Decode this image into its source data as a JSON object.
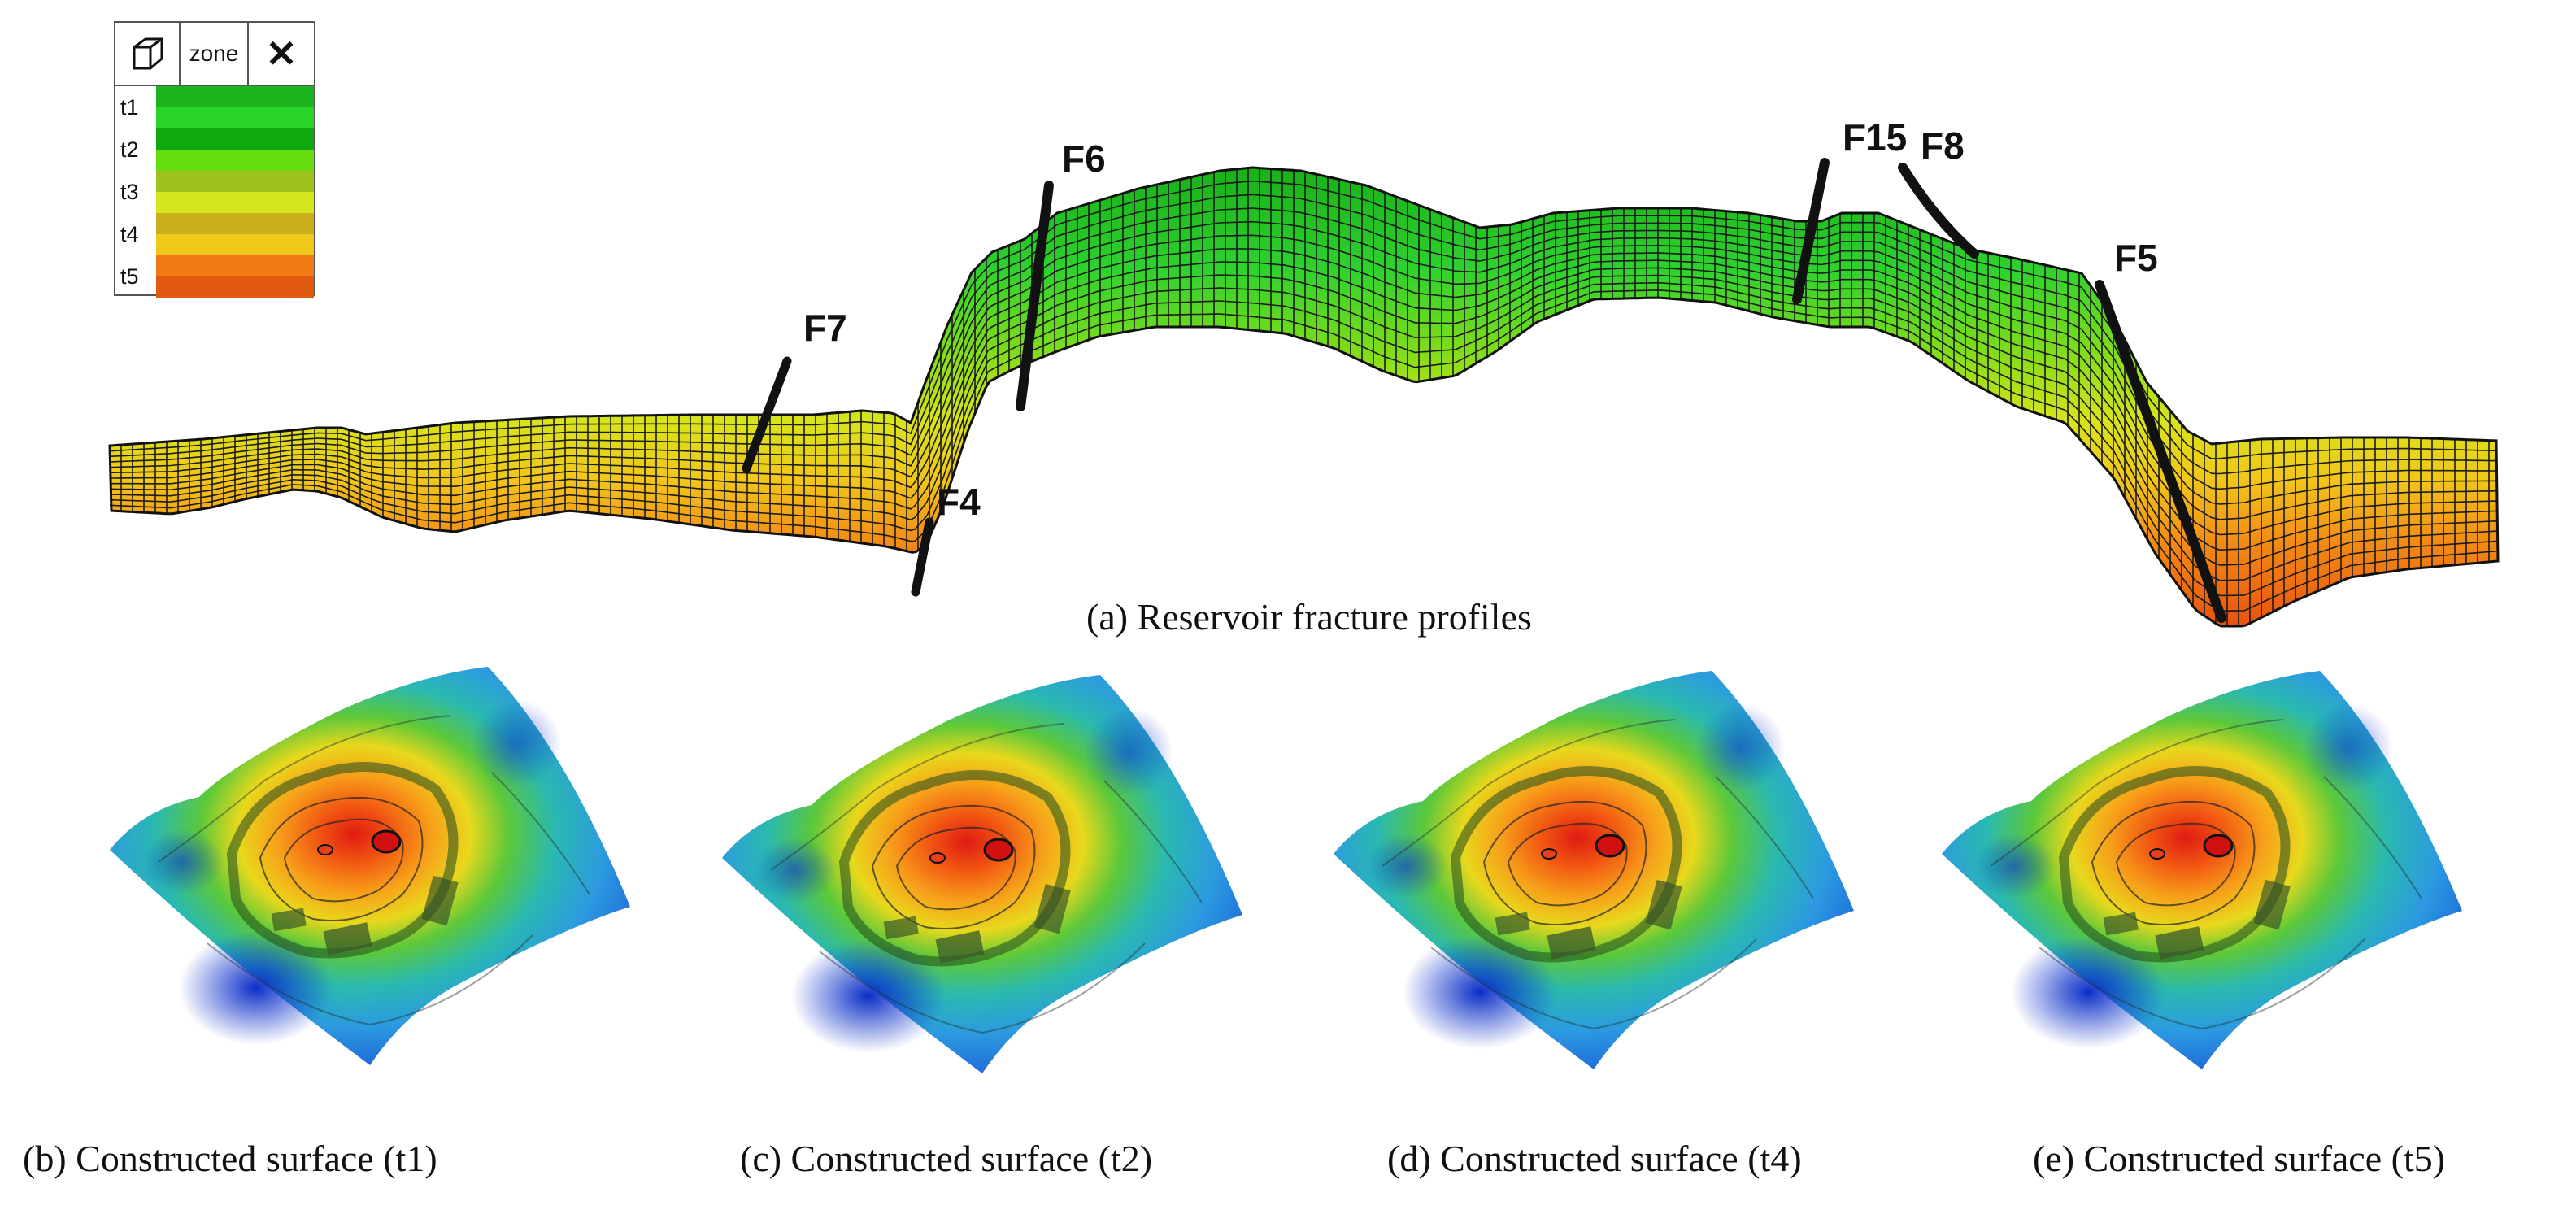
{
  "legend": {
    "box_icon": "cube-icon",
    "header": "zone",
    "close_icon": "close-icon",
    "zones": [
      {
        "label": "t1",
        "colors": [
          "#1db31d",
          "#28d428"
        ]
      },
      {
        "label": "t2",
        "colors": [
          "#0fa80f",
          "#66dd11"
        ]
      },
      {
        "label": "t3",
        "colors": [
          "#9ec21e",
          "#d6e61e"
        ]
      },
      {
        "label": "t4",
        "colors": [
          "#c9b01a",
          "#f0c81a"
        ]
      },
      {
        "label": "t5",
        "colors": [
          "#f07a14",
          "#e05a10"
        ]
      }
    ]
  },
  "faults": [
    "F7",
    "F6",
    "F4",
    "F15",
    "F8",
    "F5"
  ],
  "captions": {
    "a": "(a)  Reservoir fracture profiles",
    "b": "(b)   Constructed surface (t1)",
    "c": "(c)   Constructed surface (t2)",
    "d": "(d)   Constructed surface (t4)",
    "e": "(e)   Constructed surface (t5)"
  }
}
